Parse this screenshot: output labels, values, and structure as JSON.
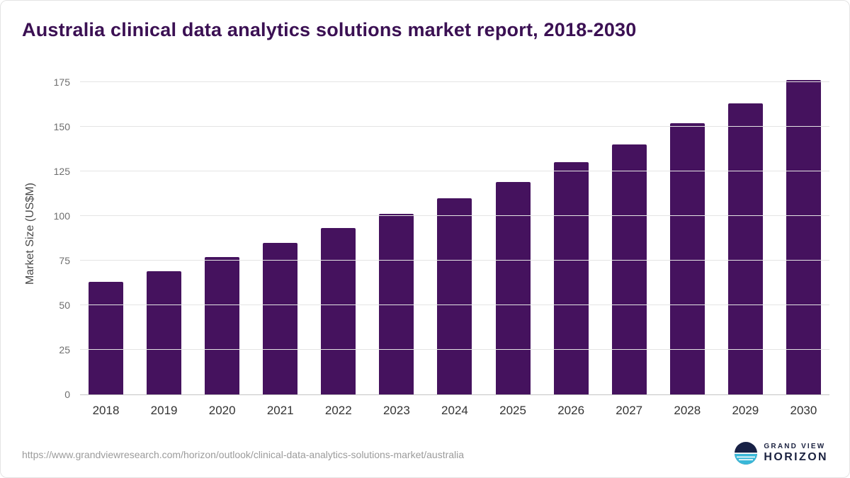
{
  "title": "Australia clinical data analytics solutions market report, 2018-2030",
  "chart_data": {
    "type": "bar",
    "title": "Australia clinical data analytics solutions market report, 2018-2030",
    "categories": [
      "2018",
      "2019",
      "2020",
      "2021",
      "2022",
      "2023",
      "2024",
      "2025",
      "2026",
      "2027",
      "2028",
      "2029",
      "2030"
    ],
    "values": [
      63,
      69,
      77,
      85,
      93,
      101,
      110,
      119,
      130,
      140,
      152,
      163,
      176
    ],
    "xlabel": "",
    "ylabel": "Market Size (US$M)",
    "yticks": [
      0,
      25,
      50,
      75,
      100,
      125,
      150,
      175
    ],
    "ylim": [
      0,
      180
    ],
    "grid": true,
    "legend": false,
    "bar_color": "#45125e"
  },
  "footer": {
    "url": "https://www.grandviewresearch.com/horizon/outlook/clinical-data-analytics-solutions-market/australia",
    "logo_top": "GRAND VIEW",
    "logo_bottom": "HORIZON"
  }
}
